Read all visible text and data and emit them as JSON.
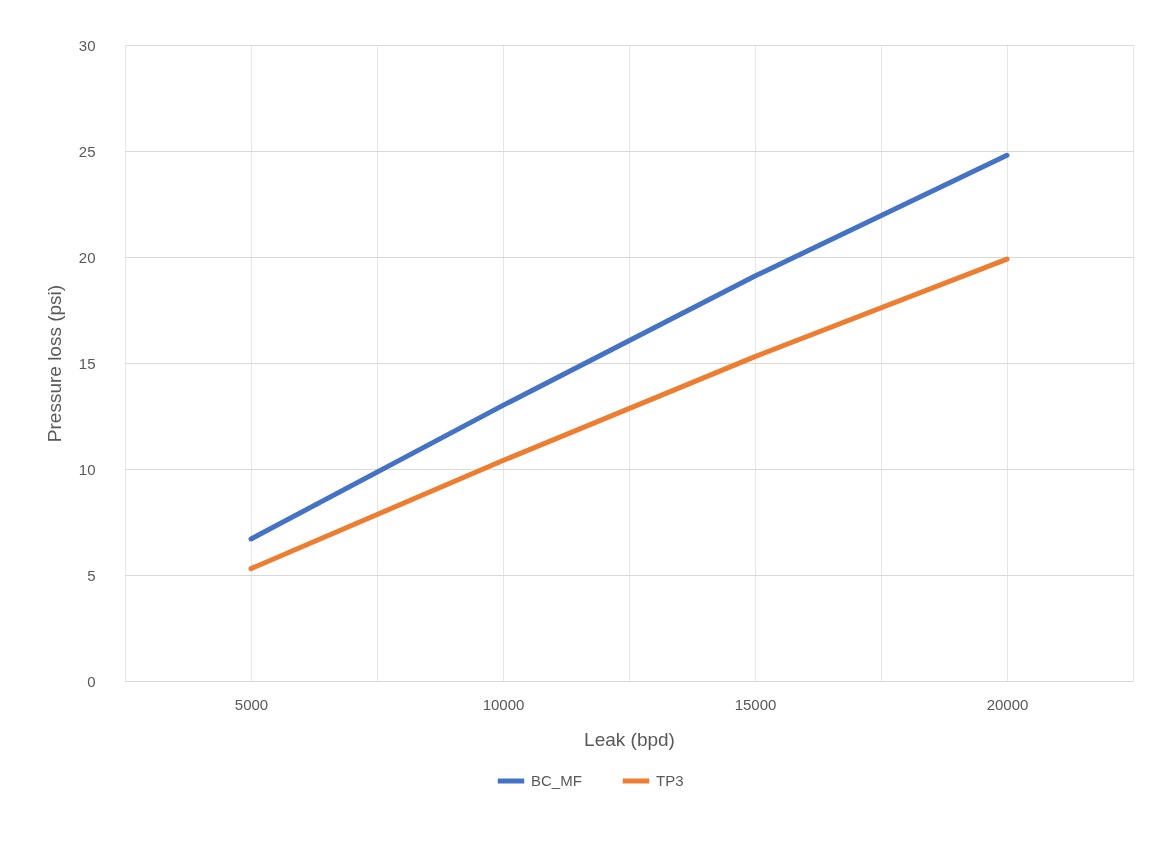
{
  "chart_data": {
    "type": "line",
    "xlabel": "Leak (bpd)",
    "ylabel": "Pressure loss (psi)",
    "x": [
      5000,
      10000,
      15000,
      20000
    ],
    "series": [
      {
        "name": "BC_MF",
        "color": "#4472c4",
        "values": [
          6.7,
          13.0,
          19.1,
          24.8
        ]
      },
      {
        "name": "TP3",
        "color": "#ed7d31",
        "values": [
          5.3,
          10.4,
          15.3,
          19.9
        ]
      }
    ],
    "xlim": [
      2500,
      22500
    ],
    "xticks": [
      {
        "value": 2500,
        "label": null
      },
      5000,
      {
        "value": 7500,
        "label": null
      },
      10000,
      {
        "value": 12500,
        "label": null
      },
      15000,
      {
        "value": 17500,
        "label": null
      },
      20000,
      {
        "value": 22500,
        "label": null
      }
    ],
    "ylim": [
      0,
      30
    ],
    "yticks": [
      0,
      5,
      10,
      15,
      20,
      25,
      30
    ],
    "grid": true,
    "legend": "bottom",
    "marker": "none",
    "line_style": "solid"
  }
}
